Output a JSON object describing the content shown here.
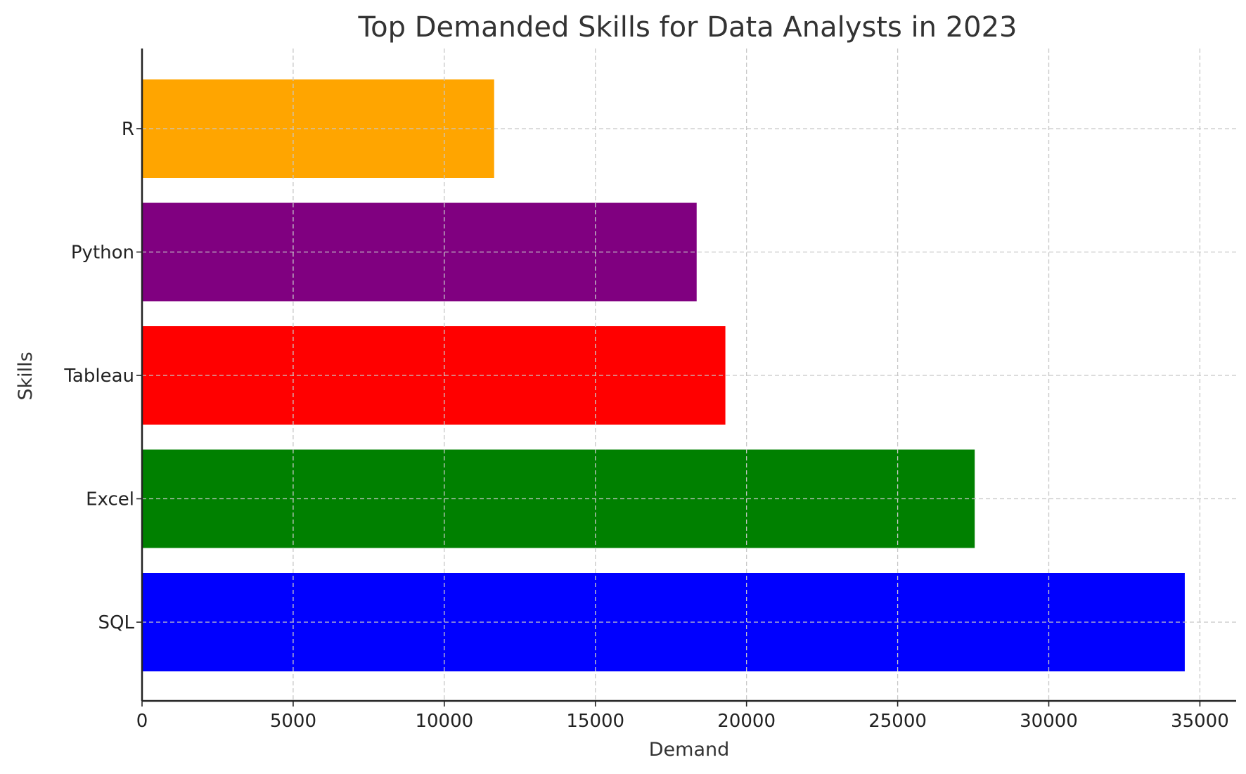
{
  "chart_data": {
    "type": "bar",
    "orientation": "horizontal",
    "title": "Top Demanded Skills for Data Analysts in 2023",
    "xlabel": "Demand",
    "ylabel": "Skills",
    "categories": [
      "SQL",
      "Excel",
      "Tableau",
      "Python",
      "R"
    ],
    "values": [
      34500,
      27550,
      19300,
      18350,
      11650
    ],
    "colors": [
      "#0000ff",
      "#008000",
      "#ff0000",
      "#800080",
      "#ffa500"
    ],
    "xlim": [
      0,
      36200
    ],
    "xticks": [
      0,
      5000,
      10000,
      15000,
      20000,
      25000,
      30000,
      35000
    ],
    "grid": true
  }
}
